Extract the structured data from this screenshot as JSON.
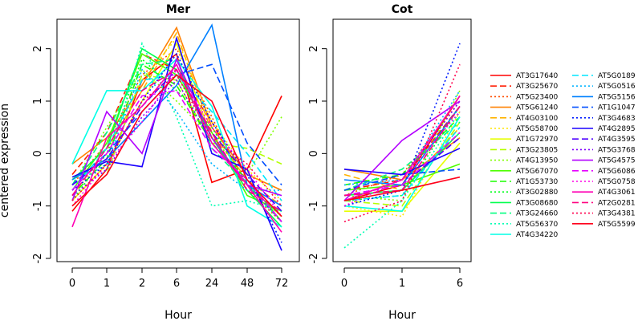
{
  "chart_data": [
    {
      "type": "line",
      "title": "Mer",
      "xlabel": "Hour",
      "ylabel": "centered expression",
      "categories": [
        "0",
        "1",
        "2",
        "6",
        "24",
        "48",
        "72"
      ],
      "ylim": [
        -2,
        2.5
      ],
      "yticks": [
        "-2",
        "-1",
        "0",
        "1",
        "2"
      ],
      "grid": false,
      "series": [
        {
          "name": "AT3G17640",
          "values": [
            -1.1,
            -0.3,
            1.4,
            1.9,
            -0.55,
            -0.3,
            1.1
          ]
        },
        {
          "name": "AT3G25670",
          "values": [
            -0.4,
            0.4,
            1.9,
            1.6,
            0.6,
            -0.6,
            -1.2
          ]
        },
        {
          "name": "AT5G23400",
          "values": [
            -0.6,
            0.2,
            1.5,
            2.0,
            0.7,
            -0.7,
            -1.3
          ]
        },
        {
          "name": "AT5G61240",
          "values": [
            -0.2,
            0.3,
            1.3,
            2.4,
            0.5,
            -0.4,
            -0.7
          ]
        },
        {
          "name": "AT4G03100",
          "values": [
            -0.7,
            0.1,
            1.2,
            2.3,
            0.4,
            -0.5,
            -1.0
          ]
        },
        {
          "name": "AT5G58700",
          "values": [
            -0.8,
            0.0,
            1.4,
            2.2,
            0.6,
            -0.3,
            -0.9
          ]
        },
        {
          "name": "AT1G72970",
          "values": [
            -0.9,
            -0.2,
            1.0,
            2.1,
            0.3,
            -0.6,
            -1.2
          ]
        },
        {
          "name": "AT3G23805",
          "values": [
            -1.0,
            -0.4,
            1.5,
            1.4,
            0.2,
            0.1,
            -0.2
          ]
        },
        {
          "name": "AT4G13950",
          "values": [
            -0.6,
            0.5,
            1.6,
            1.0,
            0.3,
            -0.4,
            0.7
          ]
        },
        {
          "name": "AT5G67070",
          "values": [
            -0.7,
            0.2,
            1.9,
            1.5,
            0.4,
            -0.8,
            -1.1
          ]
        },
        {
          "name": "AT1G53730",
          "values": [
            -0.8,
            -0.1,
            1.7,
            1.3,
            0.2,
            -0.5,
            -1.3
          ]
        },
        {
          "name": "AT3G02880",
          "values": [
            -0.9,
            0.0,
            1.8,
            1.2,
            0.5,
            -0.6,
            -1.2
          ]
        },
        {
          "name": "AT3G08680",
          "values": [
            -0.5,
            0.1,
            2.0,
            1.6,
            0.3,
            -0.7,
            -1.4
          ]
        },
        {
          "name": "AT3G24660",
          "values": [
            -0.6,
            0.4,
            1.7,
            1.8,
            0.1,
            -0.6,
            -1.3
          ]
        },
        {
          "name": "AT5G56370",
          "values": [
            -0.8,
            -0.3,
            2.1,
            0.7,
            -1.0,
            -0.9,
            -1.1
          ]
        },
        {
          "name": "AT4G34220",
          "values": [
            -0.2,
            1.2,
            1.2,
            1.8,
            0.9,
            -1.0,
            -1.4
          ]
        },
        {
          "name": "AT5G0189",
          "values": [
            -0.7,
            0.1,
            1.4,
            1.5,
            0.8,
            0.0,
            -0.9
          ]
        },
        {
          "name": "AT5G0516",
          "values": [
            -0.6,
            -0.2,
            1.6,
            0.8,
            -0.2,
            -0.7,
            -0.7
          ]
        },
        {
          "name": "AT5G5156",
          "values": [
            -0.5,
            -0.1,
            0.6,
            1.3,
            2.45,
            -0.6,
            -1.0
          ]
        },
        {
          "name": "AT1G1047",
          "values": [
            -0.6,
            0.0,
            0.8,
            1.5,
            1.7,
            0.2,
            -0.6
          ]
        },
        {
          "name": "AT3G4683",
          "values": [
            -0.7,
            -0.2,
            1.0,
            1.9,
            0.6,
            -0.4,
            -1.7
          ]
        },
        {
          "name": "AT4G2895",
          "values": [
            -0.45,
            -0.15,
            -0.25,
            2.2,
            0.0,
            -0.3,
            -1.85
          ]
        },
        {
          "name": "AT4G3595",
          "values": [
            -0.6,
            -0.1,
            0.9,
            1.6,
            0.4,
            -0.4,
            -1.1
          ]
        },
        {
          "name": "AT5G3768",
          "values": [
            -0.8,
            -0.3,
            0.7,
            1.4,
            0.2,
            -0.6,
            -1.3
          ]
        },
        {
          "name": "AT5G4575",
          "values": [
            -0.9,
            0.8,
            0.0,
            1.8,
            0.3,
            -0.6,
            -0.8
          ]
        },
        {
          "name": "AT5G6086",
          "values": [
            -0.7,
            0.0,
            1.1,
            1.2,
            0.1,
            -0.5,
            -1.3
          ]
        },
        {
          "name": "AT5G0758",
          "values": [
            -1.0,
            -0.2,
            0.6,
            1.6,
            0.5,
            -0.3,
            -1.2
          ]
        },
        {
          "name": "AT4G3061",
          "values": [
            -1.4,
            0.3,
            0.9,
            1.7,
            0.2,
            -0.6,
            -1.5
          ]
        },
        {
          "name": "AT2G0281",
          "values": [
            -0.8,
            0.1,
            1.2,
            1.6,
            0.4,
            -0.7,
            -1.1
          ]
        },
        {
          "name": "AT3G4381",
          "values": [
            -0.9,
            -0.2,
            1.0,
            1.5,
            0.3,
            -0.2,
            -1.0
          ]
        },
        {
          "name": "AT5G5599",
          "values": [
            -1.0,
            -0.4,
            0.8,
            1.5,
            1.0,
            -0.5,
            -1.2
          ]
        }
      ]
    },
    {
      "type": "line",
      "title": "Cot",
      "xlabel": "Hour",
      "ylabel": "",
      "categories": [
        "0",
        "1",
        "6"
      ],
      "ylim": [
        -2,
        2.5
      ],
      "yticks": [
        "-2",
        "-1",
        "0",
        "1",
        "2"
      ],
      "grid": false,
      "series": [
        {
          "name": "AT3G17640",
          "values": [
            -0.9,
            -0.6,
            1.1
          ]
        },
        {
          "name": "AT3G25670",
          "values": [
            -0.7,
            -0.5,
            0.9
          ]
        },
        {
          "name": "AT5G23400",
          "values": [
            -0.8,
            -0.4,
            1.0
          ]
        },
        {
          "name": "AT5G61240",
          "values": [
            -0.3,
            -0.5,
            0.3
          ]
        },
        {
          "name": "AT4G03100",
          "values": [
            -0.4,
            -0.7,
            0.5
          ]
        },
        {
          "name": "AT5G58700",
          "values": [
            -1.0,
            -1.2,
            0.8
          ]
        },
        {
          "name": "AT1G72970",
          "values": [
            -1.1,
            -1.1,
            0.2
          ]
        },
        {
          "name": "AT3G23805",
          "values": [
            -0.9,
            -1.0,
            0.6
          ]
        },
        {
          "name": "AT4G13950",
          "values": [
            -0.8,
            -0.9,
            1.2
          ]
        },
        {
          "name": "AT5G67070",
          "values": [
            -0.7,
            -0.6,
            -0.2
          ]
        },
        {
          "name": "AT1G53730",
          "values": [
            -0.6,
            -0.4,
            0.7
          ]
        },
        {
          "name": "AT3G02880",
          "values": [
            -0.9,
            -0.8,
            0.9
          ]
        },
        {
          "name": "AT3G08680",
          "values": [
            -0.8,
            -0.7,
            0.4
          ]
        },
        {
          "name": "AT3G24660",
          "values": [
            -0.7,
            -0.3,
            0.6
          ]
        },
        {
          "name": "AT5G56370",
          "values": [
            -1.8,
            -0.9,
            0.8
          ]
        },
        {
          "name": "AT4G34220",
          "values": [
            -1.0,
            -1.1,
            0.7
          ]
        },
        {
          "name": "AT5G0189",
          "values": [
            -0.9,
            -0.8,
            0.5
          ]
        },
        {
          "name": "AT5G0516",
          "values": [
            -0.6,
            -0.5,
            1.2
          ]
        },
        {
          "name": "AT5G5156",
          "values": [
            -0.5,
            -0.6,
            0.9
          ]
        },
        {
          "name": "AT1G1047",
          "values": [
            -0.7,
            -0.4,
            -0.3
          ]
        },
        {
          "name": "AT3G4683",
          "values": [
            -1.0,
            -0.7,
            2.1
          ]
        },
        {
          "name": "AT4G2895",
          "values": [
            -0.3,
            -0.4,
            0.1
          ]
        },
        {
          "name": "AT4G3595",
          "values": [
            -0.8,
            -0.6,
            0.3
          ]
        },
        {
          "name": "AT5G3768",
          "values": [
            -0.9,
            -0.5,
            1.0
          ]
        },
        {
          "name": "AT5G4575",
          "values": [
            -0.9,
            0.25,
            1.0
          ]
        },
        {
          "name": "AT5G6086",
          "values": [
            -0.8,
            -0.6,
            0.4
          ]
        },
        {
          "name": "AT5G0758",
          "values": [
            -1.0,
            -0.5,
            0.8
          ]
        },
        {
          "name": "AT4G3061",
          "values": [
            -0.9,
            -0.5,
            1.1
          ]
        },
        {
          "name": "AT2G0281",
          "values": [
            -0.8,
            -0.7,
            0.9
          ]
        },
        {
          "name": "AT3G4381",
          "values": [
            -1.3,
            -0.9,
            1.7
          ]
        },
        {
          "name": "AT5G5599",
          "values": [
            -0.9,
            -0.7,
            -0.45
          ]
        }
      ]
    }
  ],
  "legend": {
    "placement": "right",
    "entries": [
      {
        "name": "AT3G17640",
        "color": "#ff0000",
        "dash": "solid"
      },
      {
        "name": "AT3G25670",
        "color": "#ff1a00",
        "dash": "dashed"
      },
      {
        "name": "AT5G23400",
        "color": "#ff4d00",
        "dash": "dotted"
      },
      {
        "name": "AT5G61240",
        "color": "#ff8000",
        "dash": "solid"
      },
      {
        "name": "AT4G03100",
        "color": "#ffb300",
        "dash": "dashed"
      },
      {
        "name": "AT5G58700",
        "color": "#ffe600",
        "dash": "dotted"
      },
      {
        "name": "AT1G72970",
        "color": "#e6ff00",
        "dash": "solid"
      },
      {
        "name": "AT3G23805",
        "color": "#b3ff00",
        "dash": "dashed"
      },
      {
        "name": "AT4G13950",
        "color": "#80ff00",
        "dash": "dotted"
      },
      {
        "name": "AT5G67070",
        "color": "#4dff00",
        "dash": "solid"
      },
      {
        "name": "AT1G53730",
        "color": "#1aff00",
        "dash": "dashed"
      },
      {
        "name": "AT3G02880",
        "color": "#00ff1a",
        "dash": "dotted"
      },
      {
        "name": "AT3G08680",
        "color": "#00ff4d",
        "dash": "solid"
      },
      {
        "name": "AT3G24660",
        "color": "#00ff80",
        "dash": "dashed"
      },
      {
        "name": "AT5G56370",
        "color": "#00ffb3",
        "dash": "dotted"
      },
      {
        "name": "AT4G34220",
        "color": "#00ffe6",
        "dash": "solid"
      },
      {
        "name": "AT5G0189",
        "color": "#00e6ff",
        "dash": "dashed"
      },
      {
        "name": "AT5G0516",
        "color": "#00b3ff",
        "dash": "dotted"
      },
      {
        "name": "AT5G5156",
        "color": "#0080ff",
        "dash": "solid"
      },
      {
        "name": "AT1G1047",
        "color": "#004dff",
        "dash": "dashed"
      },
      {
        "name": "AT3G4683",
        "color": "#001aff",
        "dash": "dotted"
      },
      {
        "name": "AT4G2895",
        "color": "#1a00ff",
        "dash": "solid"
      },
      {
        "name": "AT4G3595",
        "color": "#4d00ff",
        "dash": "dashed"
      },
      {
        "name": "AT5G3768",
        "color": "#8000ff",
        "dash": "dotted"
      },
      {
        "name": "AT5G4575",
        "color": "#b300ff",
        "dash": "solid"
      },
      {
        "name": "AT5G6086",
        "color": "#e600ff",
        "dash": "dashed"
      },
      {
        "name": "AT5G0758",
        "color": "#ff00e6",
        "dash": "dotted"
      },
      {
        "name": "AT4G3061",
        "color": "#ff00b3",
        "dash": "solid"
      },
      {
        "name": "AT2G0281",
        "color": "#ff0080",
        "dash": "dashed"
      },
      {
        "name": "AT3G4381",
        "color": "#ff004d",
        "dash": "dotted"
      },
      {
        "name": "AT5G5599",
        "color": "#ff001a",
        "dash": "solid"
      }
    ]
  }
}
